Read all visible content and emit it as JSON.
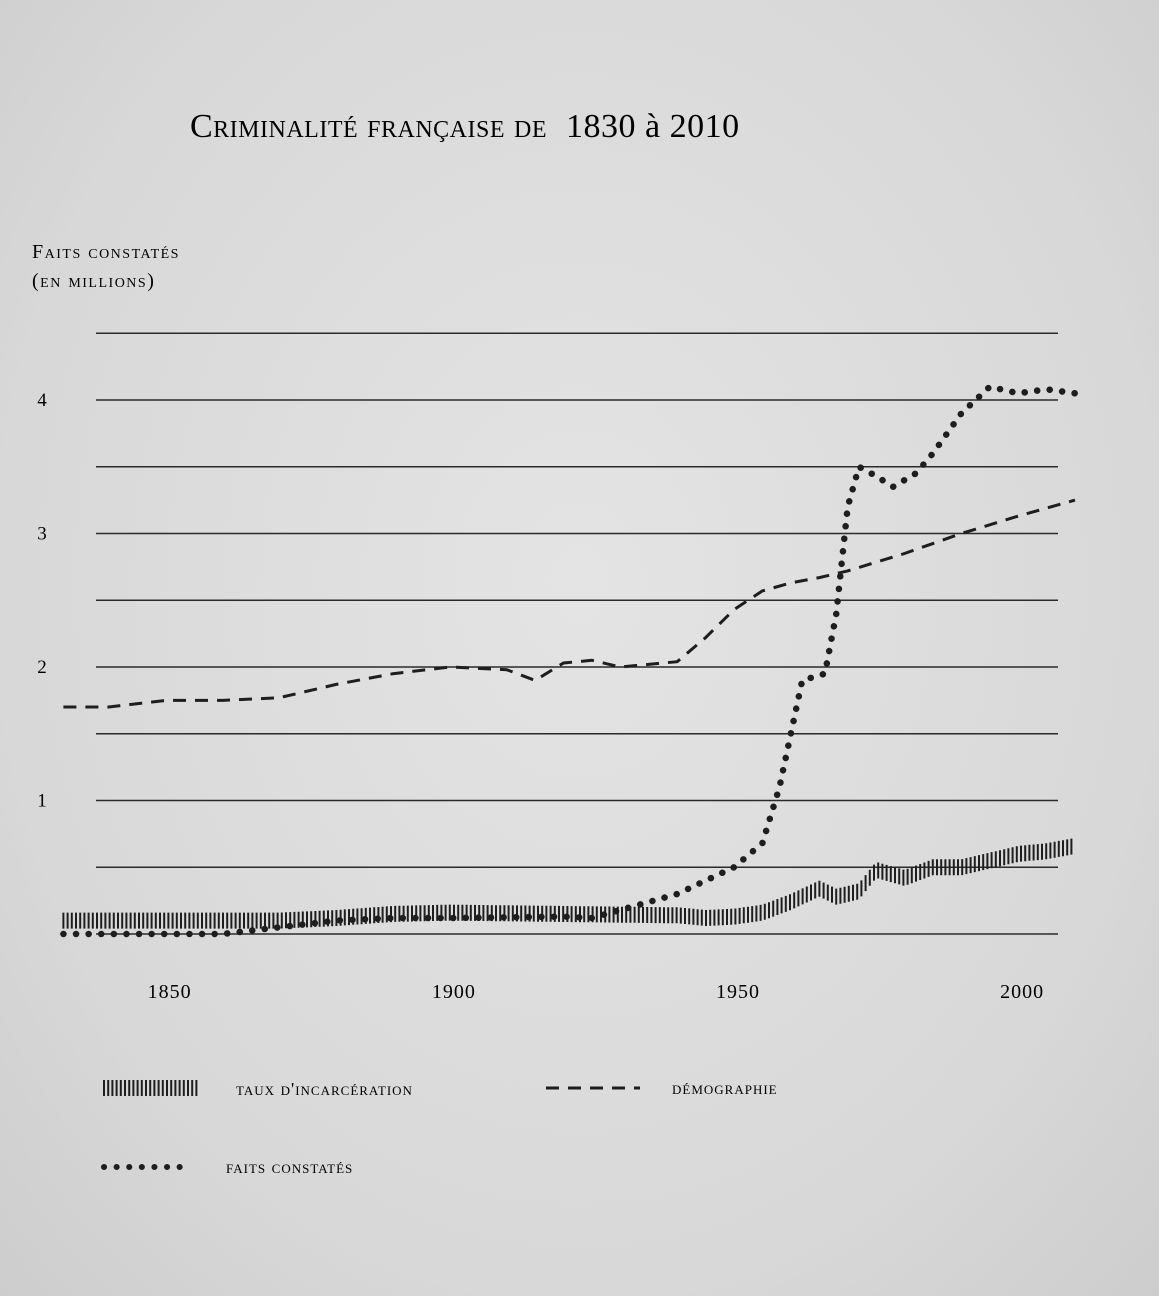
{
  "chart_data": {
    "type": "line",
    "title": "Criminalité française de 1830 à 2010",
    "title_caption": "Criminalité française de",
    "title_years": "1830 à 2010",
    "ylabel_line1": "Faits constatés",
    "ylabel_line2": "(en millions)",
    "xlabel": "",
    "ylim": [
      0,
      4.5
    ],
    "xlim": [
      1830,
      2010
    ],
    "grid": true,
    "ytick_values": [
      1,
      2,
      3,
      4
    ],
    "ytick_labels": [
      "1",
      "2",
      "3",
      "4"
    ],
    "xtick_values": [
      1850,
      1900,
      1950,
      2000
    ],
    "xtick_labels": [
      "1850",
      "1900",
      "1950",
      "2000"
    ],
    "gridlines": [
      0,
      0.5,
      1,
      1.5,
      2,
      2.5,
      3,
      3.5,
      4,
      4.5
    ],
    "legend_position": "bottom",
    "series": [
      {
        "name": "taux d'incarcération",
        "style": "hatched",
        "x": [
          1832,
          1850,
          1870,
          1880,
          1890,
          1900,
          1920,
          1940,
          1945,
          1950,
          1955,
          1960,
          1965,
          1968,
          1972,
          1975,
          1980,
          1985,
          1990,
          1995,
          2000,
          2005,
          2010
        ],
        "y": [
          0.1,
          0.1,
          0.1,
          0.12,
          0.15,
          0.16,
          0.15,
          0.14,
          0.12,
          0.13,
          0.16,
          0.24,
          0.34,
          0.28,
          0.32,
          0.48,
          0.42,
          0.5,
          0.5,
          0.55,
          0.6,
          0.62,
          0.66
        ]
      },
      {
        "name": "démographie",
        "style": "dashed",
        "x": [
          1832,
          1840,
          1850,
          1860,
          1870,
          1880,
          1890,
          1900,
          1910,
          1915,
          1920,
          1925,
          1930,
          1940,
          1945,
          1950,
          1955,
          1960,
          1965,
          1970,
          1980,
          1990,
          2000,
          2010
        ],
        "y": [
          1.7,
          1.7,
          1.75,
          1.75,
          1.77,
          1.87,
          1.95,
          2.0,
          1.98,
          1.9,
          2.03,
          2.05,
          2.0,
          2.04,
          2.22,
          2.43,
          2.57,
          2.63,
          2.67,
          2.72,
          2.85,
          3.0,
          3.13,
          3.25
        ]
      },
      {
        "name": "faits constatés",
        "style": "dotted",
        "x": [
          1832,
          1860,
          1870,
          1880,
          1890,
          1900,
          1920,
          1925,
          1930,
          1940,
          1945,
          1950,
          1955,
          1958,
          1962,
          1966,
          1968,
          1970,
          1972,
          1975,
          1978,
          1982,
          1985,
          1990,
          1995,
          2000,
          2005,
          2010
        ],
        "y": [
          0,
          0,
          0.05,
          0.1,
          0.12,
          0.12,
          0.13,
          0.12,
          0.18,
          0.3,
          0.4,
          0.5,
          0.68,
          1.1,
          1.9,
          1.95,
          2.4,
          3.2,
          3.5,
          3.43,
          3.35,
          3.45,
          3.6,
          3.9,
          4.1,
          4.05,
          4.08,
          4.05
        ]
      }
    ],
    "legend": {
      "incarceration_label": "taux d'incarcération",
      "demographie_label": "démographie",
      "faits_label": "faits constatés"
    }
  },
  "colors": {
    "ink": "#1e1e1e",
    "grid": "#2a2a2a",
    "background": "#dcdcdc"
  }
}
